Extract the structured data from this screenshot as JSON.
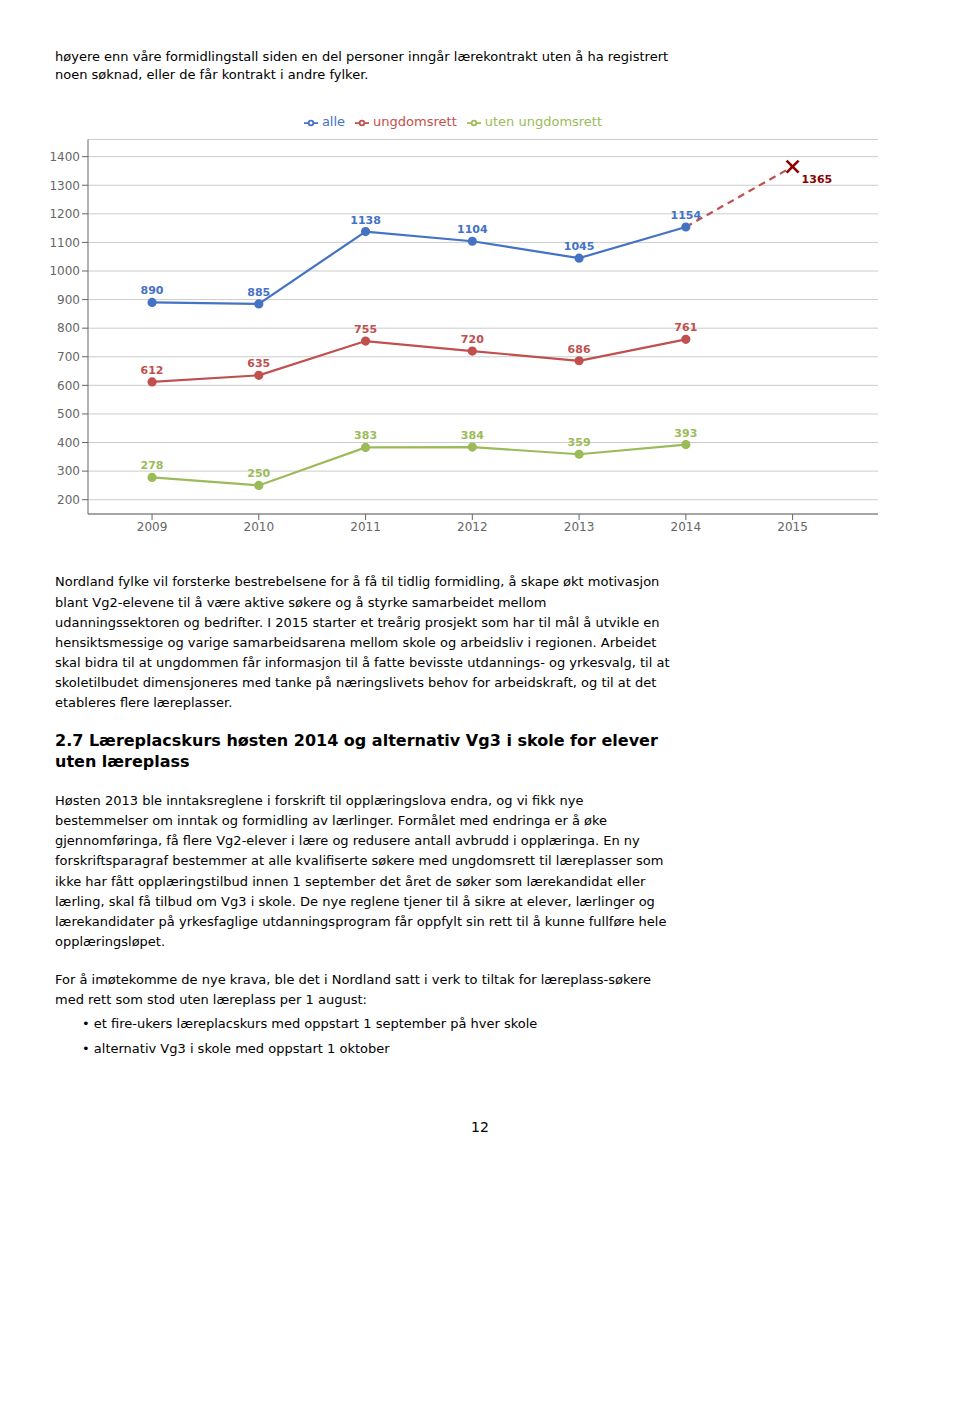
{
  "text_above": "høyere enn våre formidlingstall siden en del personer inngår lærekontrakt uten å ha registrert\nnoen søknad, eller de får kontrakt i andre fylker.",
  "chart_data": {
    "type": "line",
    "x": [
      2009,
      2010,
      2011,
      2012,
      2013,
      2014,
      2015
    ],
    "xlim": [
      2008.4,
      2015.8
    ],
    "xticks": [
      2009,
      2010,
      2011,
      2012,
      2013,
      2014,
      2015
    ],
    "ylim": [
      150,
      1460
    ],
    "yticks": [
      200,
      300,
      400,
      500,
      600,
      700,
      800,
      900,
      1000,
      1100,
      1200,
      1300,
      1400
    ],
    "grid": "y",
    "legend": "top",
    "series": [
      {
        "name": "alle",
        "color": "#4472C4",
        "values": [
          890,
          885,
          1138,
          1104,
          1045,
          1154,
          null
        ],
        "marker": "o",
        "line_style": "solid",
        "data_labels": true
      },
      {
        "name": "ungdomsrett",
        "color": "#C0504D",
        "values": [
          612,
          635,
          755,
          720,
          686,
          761,
          null
        ],
        "marker": "o",
        "line_style": "solid",
        "data_labels": true
      },
      {
        "name": "uten ungdomsrett",
        "color": "#9BBB59",
        "values": [
          278,
          250,
          383,
          384,
          359,
          393,
          null
        ],
        "marker": "o",
        "line_style": "solid",
        "data_labels": true
      },
      {
        "color": "#C0504D",
        "values": [
          null,
          null,
          null,
          null,
          null,
          1154,
          1365
        ],
        "line_style": "dashed",
        "data_labels": false
      }
    ],
    "annotations": [
      {
        "x": 2015,
        "y": 1365,
        "text": "1365",
        "marker": "x",
        "color": "#8B0000"
      }
    ]
  },
  "text_below": [
    {
      "style": "paragraph",
      "text": "Nordland fylke vil forsterke bestrebelsene for å få til tidlig formidling, å skape økt motivasjon\nblant Vg2-elevene til å være aktive søkere og å styrke samarbeidet mellom\nudanningssektoren og bedrifter. I 2015 starter et treårig prosjekt som har til mål å utvikle en\nhensiktsmessige og varige samarbeidsarena mellom skole og arbeidsliv i regionen. Arbeidet\nskal bidra til at ungdommen får informasjon til å fatte bevisste utdannings- og yrkesvalg, til at\nskoletilbudet dimensjoneres med tanke på næringslivets behov for arbeidskraft, og til at det\netableres flere læreplasser."
    },
    {
      "style": "heading",
      "text": "2.7 Læreplacskurs høsten 2014 og alternativ Vg3 i skole for elever\nuten læreplass"
    },
    {
      "style": "paragraph",
      "text": "Høsten 2013 ble inntaksreglene i forskrift til opplæringslova endra, og vi fikk nye\nbestemmelser om inntak og formidling av lærlinger. Formålet med endringa er å øke\ngjennomføringa, få flere Vg2-elever i lære og redusere antall avbrudd i opplæringa. En ny\nforskriftsparagraf bestemmer at alle kvalifiserte søkere med ungdomsrett til læreplasser som\nikke har fått opplæringstilbud innen 1 september det året de søker som lærekandidat eller\nlærling, skal få tilbud om Vg3 i skole. De nye reglene tjener til å sikre at elever, lærlinger og\nlærekandidater på yrkesfaglige utdanningsprogram får oppfylt sin rett til å kunne fullføre hele\nopplæringsløpet."
    },
    {
      "style": "paragraph",
      "text": "For å imøtekomme de nye krava, ble det i Nordland satt i verk to tiltak for læreplass-søkere\nmed rett som stod uten læreplass per 1 august:"
    },
    {
      "style": "bullet",
      "text": "• et fire-ukers læreplacskurs med oppstart 1 september på hver skole"
    },
    {
      "style": "bullet",
      "text": "• alternativ Vg3 i skole med oppstart 1 oktober"
    }
  ],
  "page_number": "12"
}
